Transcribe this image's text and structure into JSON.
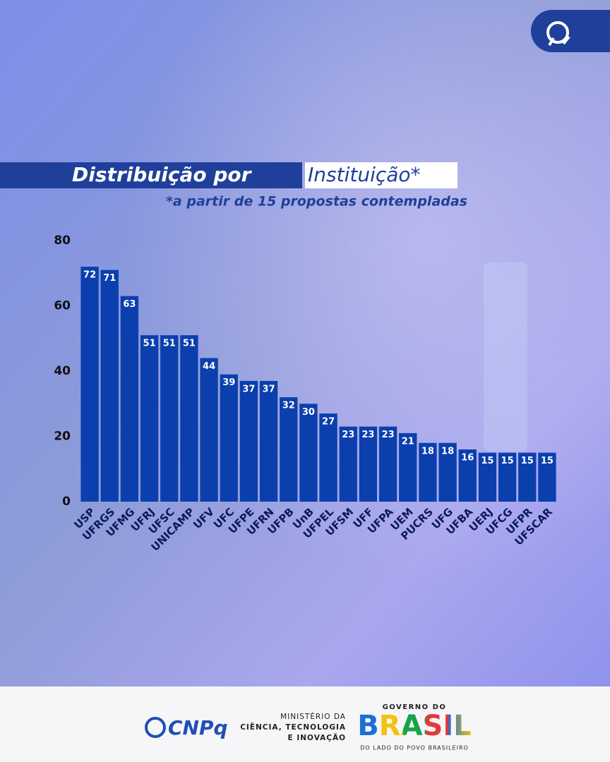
{
  "chart_data": {
    "type": "bar",
    "title": "Distribuição por",
    "title_highlight": "Instituição*",
    "subtitle": "*a partir de 15 propostas contempladas",
    "categories": [
      "USP",
      "UFRGS",
      "UFMG",
      "UFRJ",
      "UFSC",
      "UNICAMP",
      "UFV",
      "UFC",
      "UFPE",
      "UFRN",
      "UFPB",
      "UnB",
      "UFPEL",
      "UFSM",
      "UFF",
      "UFPA",
      "UEM",
      "PUCRS",
      "UFG",
      "UFBA",
      "UERJ",
      "UFCG",
      "UFPR",
      "UFSCAR"
    ],
    "values": [
      72,
      71,
      63,
      51,
      51,
      51,
      44,
      39,
      37,
      37,
      32,
      30,
      27,
      23,
      23,
      23,
      21,
      18,
      18,
      16,
      15,
      15,
      15,
      15
    ],
    "color": "#0b3fae",
    "ylim": [
      0,
      80
    ],
    "yticks": [
      0,
      20,
      40,
      60,
      80
    ],
    "grid": false
  },
  "footer": {
    "cnpq": "CNPq",
    "ministry": [
      "MINISTÉRIO DA",
      "CIÊNCIA, TECNOLOGIA",
      "E INOVAÇÃO"
    ],
    "government": "GOVERNO DO",
    "brasil": "BRASIL",
    "slogan": "DO LADO DO POVO BRASILEIRO"
  }
}
